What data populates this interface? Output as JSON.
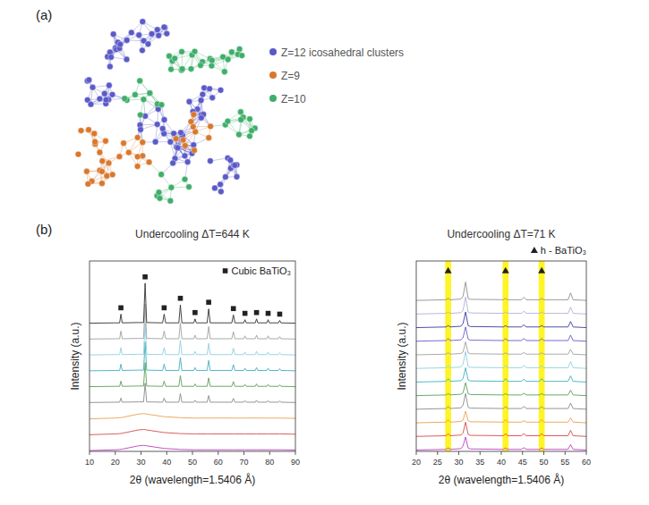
{
  "panel_a": {
    "label": "(a)",
    "legend": [
      {
        "name": "Z=12 icosahedral clusters",
        "color": "#5a5ac8"
      },
      {
        "name": "Z=9",
        "color": "#d9782d"
      },
      {
        "name": "Z=10",
        "color": "#3fae6a"
      }
    ]
  },
  "panel_b": {
    "label": "(b)"
  },
  "chart_data": [
    {
      "type": "line",
      "title": "Undercooling ΔT=644 K",
      "x_label": "2θ (wavelength=1.5406 Å)",
      "y_label": "Intensity (a.u.)",
      "x": [
        10,
        20,
        21.7,
        22.2,
        22.7,
        29,
        31,
        31.6,
        32.2,
        38.4,
        39,
        39.6,
        44.7,
        45.3,
        45.9,
        50.5,
        51,
        51.5,
        55.7,
        56.3,
        56.9,
        65.3,
        65.9,
        66.5,
        69.9,
        70.4,
        70.9,
        74.4,
        74.9,
        75.4,
        78.9,
        79.4,
        79.9,
        83.4,
        83.9,
        84.4,
        90
      ],
      "xlim": [
        10,
        90
      ],
      "xticks": [
        10,
        20,
        30,
        40,
        50,
        60,
        70,
        80,
        90
      ],
      "ylim": [
        0,
        12
      ],
      "tick_labels": "x",
      "legend": "upper right",
      "series": [
        {
          "color": "#c03cc0",
          "values": [
            0.05,
            0.1,
            0.12,
            0.13,
            0.14,
            0.35,
            0.38,
            0.37,
            0.35,
            0.2,
            0.19,
            0.18,
            0.13,
            0.12,
            0.12,
            0.1,
            0.1,
            0.1,
            0.1,
            0.1,
            0.1,
            0.1,
            0.1,
            0.1,
            0.1,
            0.1,
            0.1,
            0.1,
            0.1,
            0.1,
            0.1,
            0.1,
            0.1,
            0.1,
            0.1,
            0.1,
            0.08
          ]
        },
        {
          "color": "#d84a4a",
          "values": [
            1.05,
            1.1,
            1.12,
            1.13,
            1.14,
            1.35,
            1.38,
            1.37,
            1.35,
            1.2,
            1.19,
            1.18,
            1.13,
            1.12,
            1.12,
            1.1,
            1.1,
            1.1,
            1.1,
            1.1,
            1.1,
            1.1,
            1.1,
            1.1,
            1.1,
            1.1,
            1.1,
            1.1,
            1.1,
            1.1,
            1.1,
            1.1,
            1.1,
            1.1,
            1.1,
            1.1,
            1.08
          ]
        },
        {
          "color": "#e8a050",
          "values": [
            2.05,
            2.1,
            2.12,
            2.13,
            2.14,
            2.35,
            2.38,
            2.37,
            2.35,
            2.2,
            2.19,
            2.18,
            2.13,
            2.12,
            2.12,
            2.1,
            2.1,
            2.1,
            2.1,
            2.1,
            2.1,
            2.1,
            2.1,
            2.1,
            2.1,
            2.1,
            2.1,
            2.1,
            2.1,
            2.1,
            2.1,
            2.1,
            2.1,
            2.1,
            2.1,
            2.1,
            2.08
          ]
        },
        {
          "color": "#8a8a8a",
          "values": [
            3.08,
            3.1,
            3.1,
            3.36,
            3.1,
            3.12,
            3.12,
            4.3,
            3.12,
            3.1,
            3.36,
            3.1,
            3.1,
            3.64,
            3.1,
            3.1,
            3.22,
            3.1,
            3.1,
            3.52,
            3.1,
            3.1,
            3.34,
            3.1,
            3.1,
            3.2,
            3.1,
            3.1,
            3.22,
            3.1,
            3.1,
            3.2,
            3.1,
            3.1,
            3.17,
            3.1,
            3.08
          ]
        },
        {
          "color": "#5aa05a",
          "values": [
            4.08,
            4.1,
            4.1,
            4.43,
            4.1,
            4.12,
            4.12,
            5.6,
            4.12,
            4.1,
            4.43,
            4.1,
            4.1,
            4.78,
            4.1,
            4.1,
            4.25,
            4.1,
            4.1,
            4.63,
            4.1,
            4.1,
            4.4,
            4.1,
            4.1,
            4.22,
            4.1,
            4.1,
            4.25,
            4.1,
            4.1,
            4.22,
            4.1,
            4.1,
            4.19,
            4.1,
            4.08
          ]
        },
        {
          "color": "#40b0c0",
          "values": [
            5.08,
            5.1,
            5.1,
            5.5,
            5.1,
            5.12,
            5.12,
            6.9,
            5.12,
            5.1,
            5.5,
            5.1,
            5.1,
            5.91,
            5.1,
            5.1,
            5.28,
            5.1,
            5.1,
            5.73,
            5.1,
            5.1,
            5.46,
            5.1,
            5.1,
            5.24,
            5.1,
            5.1,
            5.28,
            5.1,
            5.1,
            5.24,
            5.1,
            5.1,
            5.21,
            5.1,
            5.08
          ]
        },
        {
          "color": "#8fd0e0",
          "values": [
            6.08,
            6.1,
            6.1,
            6.54,
            6.1,
            6.12,
            6.12,
            8.1,
            6.12,
            6.1,
            6.54,
            6.1,
            6.1,
            7.0,
            6.1,
            6.1,
            6.3,
            6.1,
            6.1,
            6.8,
            6.1,
            6.1,
            6.5,
            6.1,
            6.1,
            6.26,
            6.1,
            6.1,
            6.3,
            6.1,
            6.1,
            6.26,
            6.1,
            6.1,
            6.22,
            6.1,
            6.08
          ]
        },
        {
          "color": "#a0a0a0",
          "values": [
            7.08,
            7.1,
            7.1,
            7.58,
            7.1,
            7.12,
            7.12,
            9.3,
            7.12,
            7.1,
            7.58,
            7.1,
            7.1,
            8.09,
            7.1,
            7.1,
            7.32,
            7.1,
            7.1,
            7.87,
            7.1,
            7.1,
            7.54,
            7.1,
            7.1,
            7.28,
            7.1,
            7.1,
            7.32,
            7.1,
            7.1,
            7.28,
            7.1,
            7.1,
            7.23,
            7.1,
            7.08
          ]
        },
        {
          "color": "#303030",
          "values": [
            8.08,
            8.1,
            8.1,
            8.65,
            8.1,
            8.12,
            8.12,
            10.6,
            8.12,
            8.1,
            8.65,
            8.1,
            8.1,
            9.23,
            8.1,
            8.1,
            8.35,
            8.1,
            8.1,
            8.98,
            8.1,
            8.1,
            8.6,
            8.1,
            8.1,
            8.3,
            8.1,
            8.1,
            8.35,
            8.1,
            8.1,
            8.3,
            8.1,
            8.1,
            8.25,
            8.1,
            8.08
          ]
        },
        {
          "name": "Cubic BaTiO₃",
          "type": "scatter",
          "marker": "square",
          "color": "#222222",
          "x": [
            22.2,
            31.6,
            39,
            45.3,
            51,
            56.3,
            65.9,
            70.4,
            74.9,
            79.4,
            83.9
          ],
          "values": [
            9.05,
            11.0,
            9.05,
            9.65,
            8.75,
            9.4,
            9.0,
            8.7,
            8.75,
            8.7,
            8.65
          ]
        }
      ]
    },
    {
      "type": "line",
      "title": "Undercooling ΔT=71 K",
      "x_label": "2θ (wavelength=1.5406 Å)",
      "y_label": "Intensity (a.u.)",
      "x": [
        20,
        27,
        27.5,
        28,
        30.5,
        31,
        31.6,
        32.2,
        32.7,
        40.5,
        41,
        41.5,
        44.7,
        45.3,
        45.9,
        49,
        49.5,
        50,
        55.7,
        56.3,
        56.9,
        60
      ],
      "xlim": [
        20,
        60
      ],
      "xticks": [
        20,
        25,
        30,
        35,
        40,
        45,
        50,
        55,
        60
      ],
      "ylim": [
        0,
        14
      ],
      "tick_labels": "x",
      "legend": "top",
      "highlight_ranges": [
        [
          26.8,
          28.2
        ],
        [
          40.3,
          41.7
        ],
        [
          48.8,
          50.2
        ]
      ],
      "series": [
        {
          "color": "#c03cc0",
          "values": [
            0.1,
            0.15,
            0.25,
            0.15,
            0.2,
            0.4,
            1.05,
            0.25,
            0.18,
            0.15,
            0.25,
            0.15,
            0.15,
            0.27,
            0.15,
            0.15,
            0.25,
            0.15,
            0.15,
            0.5,
            0.15,
            0.1
          ]
        },
        {
          "color": "#d84a4a",
          "values": [
            1.1,
            1.15,
            1.3,
            1.15,
            1.2,
            1.35,
            2.15,
            1.25,
            1.18,
            1.15,
            1.3,
            1.15,
            1.15,
            1.3,
            1.15,
            1.15,
            1.3,
            1.15,
            1.15,
            1.55,
            1.15,
            1.1
          ]
        },
        {
          "color": "#e8a050",
          "values": [
            2.1,
            2.15,
            2.35,
            2.15,
            2.2,
            2.3,
            2.95,
            2.25,
            2.18,
            2.15,
            2.35,
            2.15,
            2.15,
            2.25,
            2.15,
            2.15,
            2.35,
            2.15,
            2.15,
            2.45,
            2.15,
            2.1
          ]
        },
        {
          "color": "#8a8a8a",
          "values": [
            3.1,
            3.15,
            3.3,
            3.15,
            3.2,
            3.4,
            4.25,
            3.25,
            3.18,
            3.15,
            3.3,
            3.15,
            3.15,
            3.3,
            3.15,
            3.15,
            3.3,
            3.15,
            3.15,
            3.55,
            3.15,
            3.1
          ]
        },
        {
          "color": "#5aa05a",
          "values": [
            4.1,
            4.15,
            4.25,
            4.15,
            4.2,
            4.3,
            5.05,
            4.25,
            4.18,
            4.15,
            4.25,
            4.15,
            4.15,
            4.27,
            4.15,
            4.15,
            4.25,
            4.15,
            4.15,
            4.5,
            4.15,
            4.1
          ]
        },
        {
          "color": "#40b0c0",
          "values": [
            5.1,
            5.15,
            5.35,
            5.15,
            5.2,
            5.35,
            6.15,
            5.25,
            5.18,
            5.15,
            5.35,
            5.15,
            5.15,
            5.3,
            5.15,
            5.15,
            5.35,
            5.15,
            5.15,
            5.55,
            5.15,
            5.1
          ]
        },
        {
          "color": "#8fd0e0",
          "values": [
            6.1,
            6.15,
            6.3,
            6.15,
            6.2,
            6.4,
            7.35,
            6.25,
            6.18,
            6.15,
            6.3,
            6.15,
            6.15,
            6.3,
            6.15,
            6.15,
            6.3,
            6.15,
            6.15,
            6.6,
            6.15,
            6.1
          ]
        },
        {
          "color": "#a0a0a0",
          "values": [
            7.1,
            7.15,
            7.25,
            7.15,
            7.2,
            7.3,
            8.05,
            7.25,
            7.18,
            7.15,
            7.25,
            7.15,
            7.15,
            7.27,
            7.15,
            7.15,
            7.25,
            7.15,
            7.15,
            7.5,
            7.15,
            7.1
          ]
        },
        {
          "color": "#6a5acd",
          "values": [
            8.1,
            8.15,
            8.3,
            8.15,
            8.2,
            8.35,
            9.15,
            8.25,
            8.18,
            8.15,
            8.3,
            8.15,
            8.15,
            8.3,
            8.15,
            8.15,
            8.3,
            8.15,
            8.15,
            8.55,
            8.15,
            8.1
          ]
        },
        {
          "color": "#3a3aa0",
          "values": [
            9.1,
            9.15,
            9.25,
            9.15,
            9.2,
            9.4,
            10.25,
            9.25,
            9.18,
            9.15,
            9.25,
            9.15,
            9.15,
            9.3,
            9.15,
            9.15,
            9.25,
            9.15,
            9.15,
            9.55,
            9.15,
            9.1
          ]
        },
        {
          "color": "#b0b0d8",
          "values": [
            10.1,
            10.15,
            10.25,
            10.15,
            10.2,
            10.35,
            11.35,
            10.25,
            10.18,
            10.15,
            10.25,
            10.15,
            10.15,
            10.3,
            10.15,
            10.15,
            10.25,
            10.15,
            10.15,
            10.6,
            10.15,
            10.1
          ]
        },
        {
          "color": "#909090",
          "values": [
            11.1,
            11.15,
            11.25,
            11.15,
            11.2,
            11.4,
            12.45,
            11.25,
            11.18,
            11.15,
            11.25,
            11.15,
            11.15,
            11.33,
            11.15,
            11.15,
            11.25,
            11.15,
            11.15,
            11.65,
            11.15,
            11.1
          ]
        },
        {
          "name": "h - BaTiO₃",
          "type": "scatter",
          "marker": "triangle",
          "color": "#222222",
          "x": [
            27.5,
            41,
            49.5
          ],
          "values": [
            13.3,
            13.3,
            13.3
          ]
        }
      ]
    }
  ]
}
